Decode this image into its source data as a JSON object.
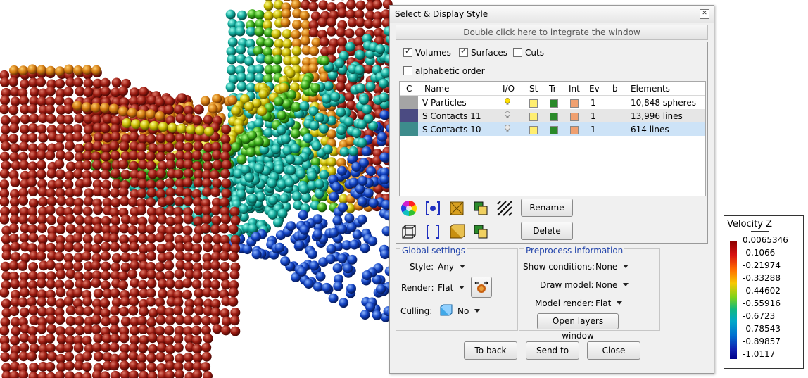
{
  "viewport": {
    "description_icon": "3d-particle-render"
  },
  "dialog": {
    "title": "Select & Display Style",
    "integrate_text": "Double click here to integrate the window",
    "checkboxes": [
      {
        "label": "Volumes",
        "checked": true
      },
      {
        "label": "Surfaces",
        "checked": true
      },
      {
        "label": "Cuts",
        "checked": false
      },
      {
        "label": "alphabetic order",
        "checked": false
      }
    ],
    "columns": [
      "C",
      "Name",
      "I/O",
      "St",
      "Tr",
      "Int",
      "Ev",
      "b",
      "Elements"
    ],
    "rows": [
      {
        "name": "V Particles",
        "ev": "1",
        "elements": "10,848 spheres",
        "color": "#a5a5a5"
      },
      {
        "name": "S Contacts 11",
        "ev": "1",
        "elements": "13,996 lines",
        "color": "#4b4b82"
      },
      {
        "name": "S Contacts 10",
        "ev": "1",
        "elements": "614 lines",
        "color": "#3d8c8c"
      }
    ],
    "buttons": {
      "rename": "Rename",
      "delete": "Delete",
      "to_back": "To back",
      "send_to": "Send to",
      "close": "Close",
      "open_layers": "Open layers window"
    },
    "global_settings": {
      "legend": "Global settings",
      "style_label": "Style:",
      "style_value": "Any",
      "render_label": "Render:",
      "render_value": "Flat",
      "culling_label": "Culling:",
      "culling_value": "No"
    },
    "preprocess": {
      "legend": "Preprocess information",
      "show_conditions_label": "Show conditions:",
      "show_conditions_value": "None",
      "draw_model_label": "Draw model:",
      "draw_model_value": "None",
      "model_render_label": "Model render:",
      "model_render_value": "Flat"
    }
  },
  "color_scale": {
    "title": "Velocity Z",
    "ticks": [
      "0.0065346",
      "-0.1066",
      "-0.21974",
      "-0.33288",
      "-0.44602",
      "-0.55916",
      "-0.6723",
      "-0.78543",
      "-0.89857",
      "-1.0117"
    ]
  }
}
